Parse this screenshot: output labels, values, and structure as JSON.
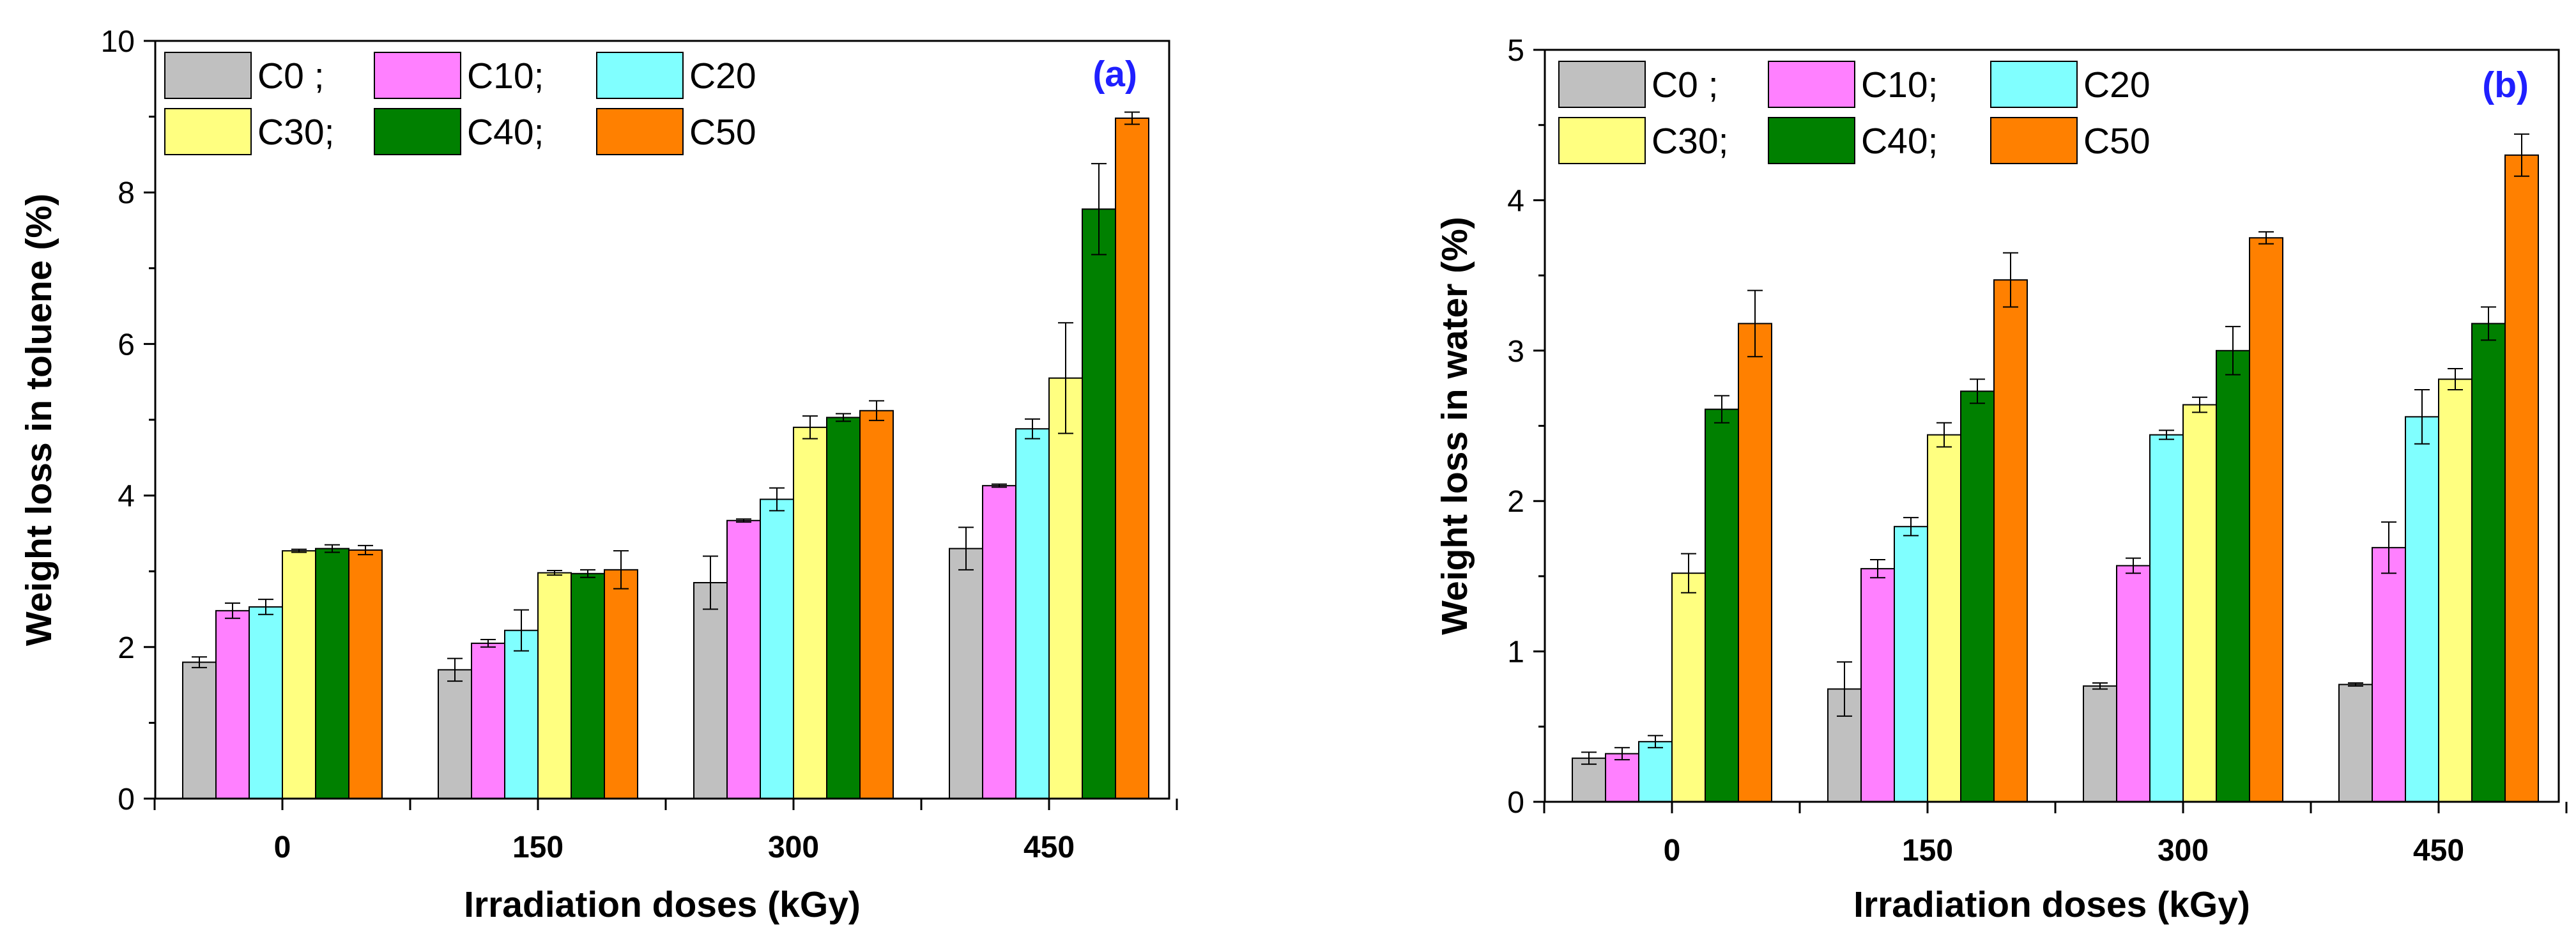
{
  "colors": {
    "C0": "#c0c0c0",
    "C10": "#ff80ff",
    "C20": "#80ffff",
    "C30": "#ffff80",
    "C40": "#008000",
    "C50": "#ff8000",
    "axis": "#000000",
    "panel_tag": "#1f1fff"
  },
  "legend_labels": [
    "C0 ;",
    "C10;",
    "C20",
    "C30;",
    "C40;",
    "C50"
  ],
  "chart_data": [
    {
      "type": "bar",
      "panel_tag": "(a)",
      "title": "",
      "xlabel": "Irradiation doses (kGy)",
      "ylabel": "Weight loss in toluene (%)",
      "categories": [
        "0",
        "150",
        "300",
        "450"
      ],
      "ylim": [
        0,
        10
      ],
      "yticks": [
        "0",
        "2",
        "4",
        "6",
        "8",
        "10"
      ],
      "grid": false,
      "legend_position": "top-left",
      "series": [
        {
          "name": "C0",
          "values": [
            1.8,
            1.7,
            2.85,
            3.3
          ],
          "errors": [
            0.07,
            0.15,
            0.35,
            0.28
          ]
        },
        {
          "name": "C10",
          "values": [
            2.48,
            2.05,
            3.67,
            4.13
          ],
          "errors": [
            0.1,
            0.05,
            0.02,
            0.02
          ]
        },
        {
          "name": "C20",
          "values": [
            2.53,
            2.22,
            3.95,
            4.88
          ],
          "errors": [
            0.1,
            0.27,
            0.15,
            0.13
          ]
        },
        {
          "name": "C30",
          "values": [
            3.27,
            2.98,
            4.9,
            5.55
          ],
          "errors": [
            0.02,
            0.03,
            0.15,
            0.73
          ]
        },
        {
          "name": "C40",
          "values": [
            3.3,
            2.97,
            5.03,
            7.78
          ],
          "errors": [
            0.05,
            0.05,
            0.05,
            0.6
          ]
        },
        {
          "name": "C50",
          "values": [
            3.28,
            3.02,
            5.12,
            8.98
          ],
          "errors": [
            0.06,
            0.25,
            0.13,
            0.08
          ]
        }
      ]
    },
    {
      "type": "bar",
      "panel_tag": "(b)",
      "title": "",
      "xlabel": "Irradiation doses (kGy)",
      "ylabel": "Weight loss in water (%)",
      "categories": [
        "0",
        "150",
        "300",
        "450"
      ],
      "ylim": [
        0,
        5
      ],
      "yticks": [
        "0",
        "1",
        "2",
        "3",
        "4",
        "5"
      ],
      "grid": false,
      "legend_position": "top-left",
      "series": [
        {
          "name": "C0",
          "values": [
            0.29,
            0.75,
            0.77,
            0.78
          ],
          "errors": [
            0.04,
            0.18,
            0.02,
            0.01
          ]
        },
        {
          "name": "C10",
          "values": [
            0.32,
            1.55,
            1.57,
            1.69
          ],
          "errors": [
            0.04,
            0.06,
            0.05,
            0.17
          ]
        },
        {
          "name": "C20",
          "values": [
            0.4,
            1.83,
            2.44,
            2.56
          ],
          "errors": [
            0.04,
            0.06,
            0.03,
            0.18
          ]
        },
        {
          "name": "C30",
          "values": [
            1.52,
            2.44,
            2.64,
            2.81
          ],
          "errors": [
            0.13,
            0.08,
            0.05,
            0.07
          ]
        },
        {
          "name": "C40",
          "values": [
            2.61,
            2.73,
            3.0,
            3.18
          ],
          "errors": [
            0.09,
            0.08,
            0.16,
            0.11
          ]
        },
        {
          "name": "C50",
          "values": [
            3.18,
            3.47,
            3.75,
            4.3
          ],
          "errors": [
            0.22,
            0.18,
            0.04,
            0.14
          ]
        }
      ]
    }
  ]
}
